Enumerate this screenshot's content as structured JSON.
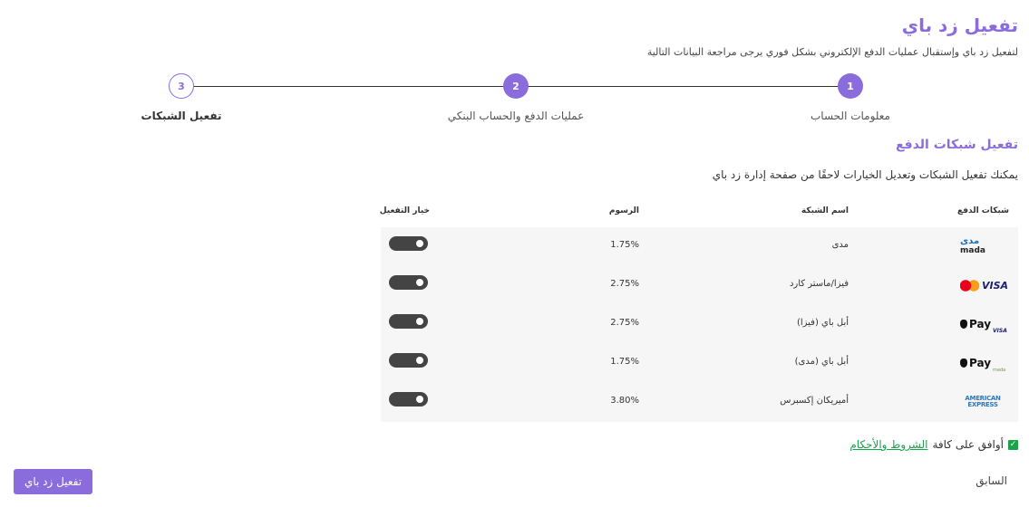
{
  "header": {
    "title": "تفعيل زد باي",
    "subtitle": "لتفعيل زد باي وإستقبال عمليات الدفع الإلكتروني بشكل فوري يرجى مراجعة البيانات التالية"
  },
  "steps": [
    {
      "number": 1,
      "label": "معلومات الحساب"
    },
    {
      "number": 2,
      "label": "عمليات الدفع والحساب البنكي"
    },
    {
      "number": 3,
      "label": "تفعيل الشبكات"
    }
  ],
  "section": {
    "title": "تفعيل شبكات الدفع",
    "description": "يمكنك تفعيل الشبكات وتعديل الخيارات لاحقًا من صفحة إدارة زد باي"
  },
  "table": {
    "headers": [
      "شبكات الدفع",
      "اسم الشبكة",
      "الرسوم",
      "خيار التفعيل"
    ],
    "rows": [
      {
        "logo": [
          "مدى",
          "mada"
        ],
        "name": "مدى",
        "fee": "1.75%"
      },
      {
        "logo": [
          "VISA"
        ],
        "name": "فيزا/ماستر كارد",
        "fee": "2.75%"
      },
      {
        "logo": [
          "Pay",
          "VISA"
        ],
        "name": "أبل باي (فيزا)",
        "fee": "2.75%"
      },
      {
        "logo": [
          "Pay",
          "mada"
        ],
        "name": "أبل باي (مدى)",
        "fee": "1.75%"
      },
      {
        "logo": [
          "AMERICAN EXPRESS"
        ],
        "name": "أميريكان إكسبرس",
        "fee": "3.80%"
      }
    ]
  },
  "terms": {
    "text": "أوافق على كافة",
    "link": "الشروط والأحكام"
  },
  "footer": {
    "back": "السابق",
    "submit": "تفعيل زد باي"
  }
}
